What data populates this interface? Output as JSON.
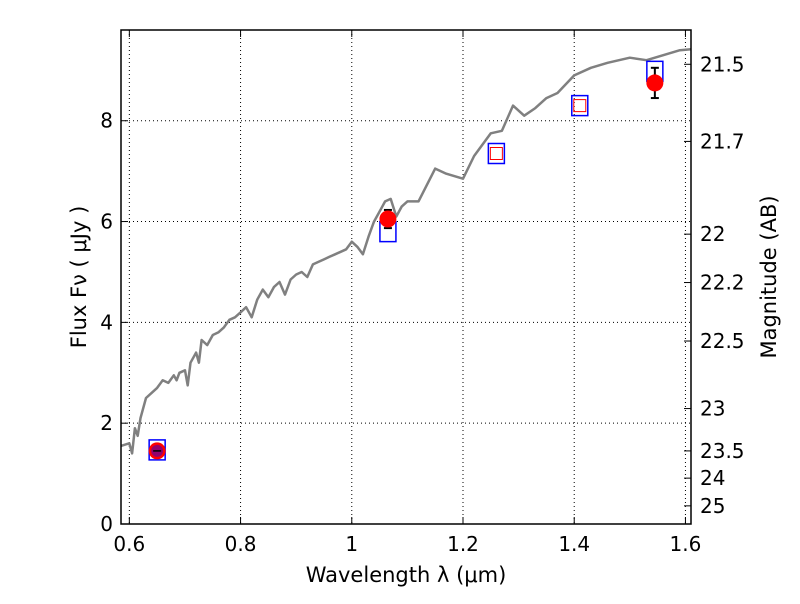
{
  "chart_data": {
    "type": "scatter",
    "xlabel": "Wavelength  λ (μm)",
    "ylabel": "Flux  Fν  ( μJy )",
    "y2label": "Magnitude (AB)",
    "xlim": [
      0.585,
      1.61
    ],
    "ylim": [
      0,
      9.8
    ],
    "grid": true,
    "x_ticks": [
      0.6,
      0.8,
      1.0,
      1.2,
      1.4,
      1.6
    ],
    "x_tick_labels": [
      "0.6",
      "0.8",
      "1",
      "1.2",
      "1.4",
      "1.6"
    ],
    "y_ticks": [
      0,
      2,
      4,
      6,
      8
    ],
    "y_tick_labels": [
      "0",
      "2",
      "4",
      "6",
      "8"
    ],
    "y2_ticks": [
      {
        "flux": 9.12,
        "label": "21.5"
      },
      {
        "flux": 7.59,
        "label": "21.7"
      },
      {
        "flux": 5.75,
        "label": "22"
      },
      {
        "flux": 4.79,
        "label": "22.2"
      },
      {
        "flux": 3.63,
        "label": "22.5"
      },
      {
        "flux": 2.29,
        "label": "23"
      },
      {
        "flux": 1.45,
        "label": "23.5"
      },
      {
        "flux": 0.91,
        "label": "24"
      },
      {
        "flux": 0.36,
        "label": "25"
      }
    ],
    "model_spectrum": {
      "color": "#808080",
      "x": [
        0.585,
        0.6,
        0.605,
        0.61,
        0.615,
        0.62,
        0.63,
        0.64,
        0.65,
        0.66,
        0.67,
        0.68,
        0.685,
        0.69,
        0.7,
        0.705,
        0.71,
        0.72,
        0.725,
        0.73,
        0.74,
        0.75,
        0.76,
        0.77,
        0.78,
        0.79,
        0.8,
        0.81,
        0.82,
        0.83,
        0.84,
        0.85,
        0.86,
        0.87,
        0.88,
        0.89,
        0.9,
        0.91,
        0.92,
        0.93,
        0.94,
        0.95,
        0.96,
        0.97,
        0.98,
        0.99,
        1.0,
        1.01,
        1.02,
        1.03,
        1.04,
        1.05,
        1.06,
        1.07,
        1.08,
        1.09,
        1.1,
        1.12,
        1.15,
        1.17,
        1.2,
        1.22,
        1.25,
        1.27,
        1.29,
        1.31,
        1.33,
        1.35,
        1.37,
        1.4,
        1.43,
        1.46,
        1.5,
        1.53,
        1.56,
        1.59,
        1.61
      ],
      "y": [
        1.55,
        1.6,
        1.4,
        1.9,
        1.75,
        2.1,
        2.5,
        2.6,
        2.7,
        2.85,
        2.8,
        2.95,
        2.85,
        3.0,
        3.05,
        2.75,
        3.2,
        3.4,
        3.2,
        3.65,
        3.55,
        3.75,
        3.8,
        3.9,
        4.05,
        4.1,
        4.2,
        4.3,
        4.1,
        4.45,
        4.65,
        4.5,
        4.7,
        4.8,
        4.55,
        4.85,
        4.95,
        5.0,
        4.9,
        5.15,
        5.2,
        5.25,
        5.3,
        5.35,
        5.4,
        5.45,
        5.6,
        5.5,
        5.35,
        5.7,
        6.0,
        6.2,
        6.4,
        6.45,
        6.1,
        6.3,
        6.4,
        6.4,
        7.05,
        6.95,
        6.85,
        7.3,
        7.75,
        7.8,
        8.3,
        8.1,
        8.25,
        8.45,
        8.55,
        8.9,
        9.05,
        9.15,
        9.25,
        9.2,
        9.3,
        9.4,
        9.42
      ]
    },
    "observed_points": [
      {
        "x": 0.65,
        "y": 1.45,
        "err": 0.08,
        "color": "#ff0000"
      },
      {
        "x": 1.065,
        "y": 6.05,
        "err": 0.18,
        "color": "#ff0000"
      },
      {
        "x": 1.545,
        "y": 8.75,
        "err": 0.3,
        "color": "#ff0000"
      }
    ],
    "model_photometry_blue": [
      {
        "x": 0.65,
        "y": 1.47
      },
      {
        "x": 1.065,
        "y": 5.8
      },
      {
        "x": 1.26,
        "y": 7.35
      },
      {
        "x": 1.41,
        "y": 8.3
      },
      {
        "x": 1.545,
        "y": 8.98
      }
    ],
    "model_photometry_red": [
      {
        "x": 1.26,
        "y": 7.35
      },
      {
        "x": 1.41,
        "y": 8.3
      }
    ],
    "overlap_marker": {
      "x": 0.65,
      "y": 1.45,
      "color": "#800080"
    }
  }
}
